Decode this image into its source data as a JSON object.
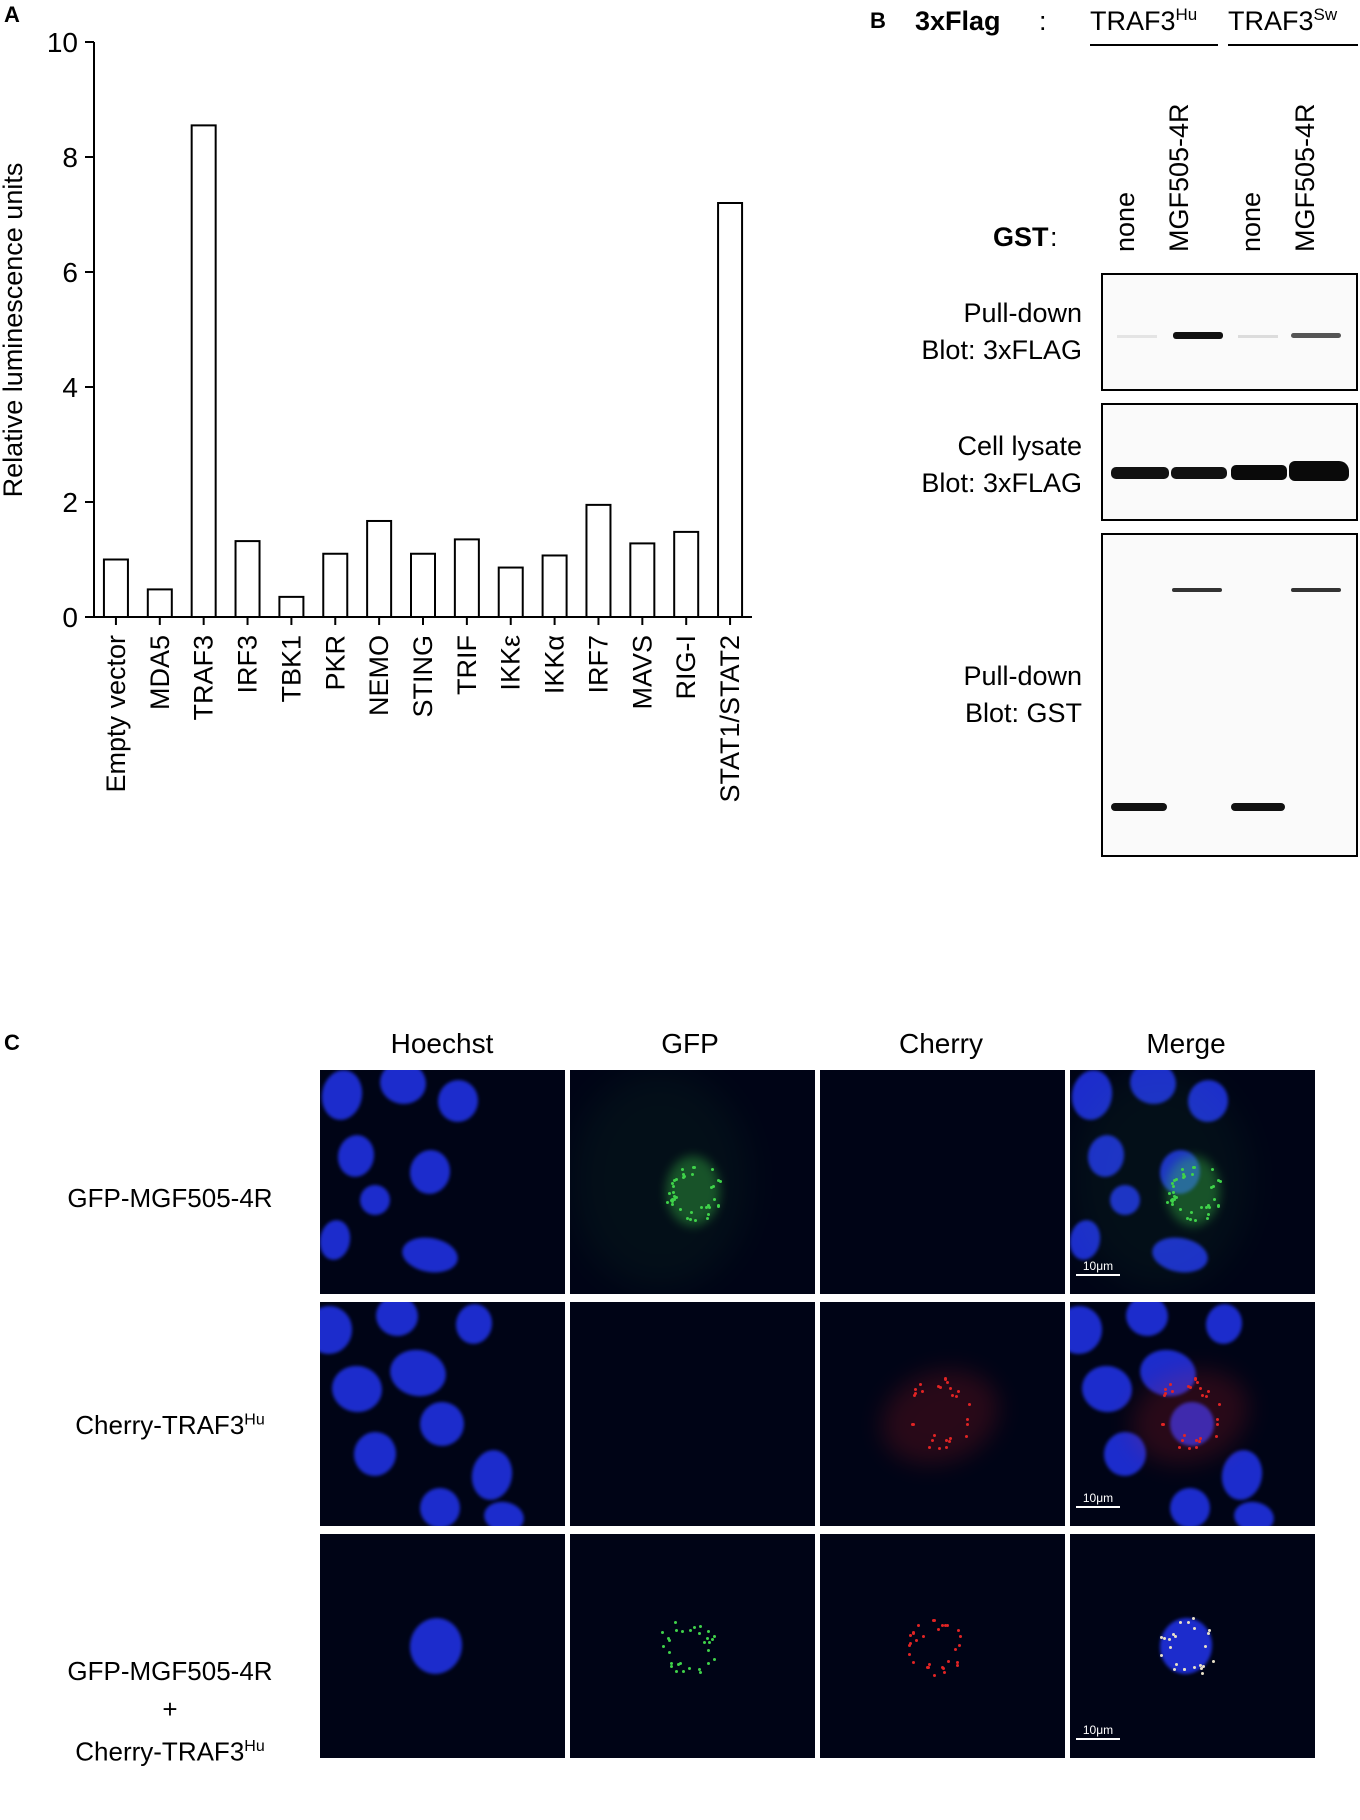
{
  "panel_a": {
    "letter": "A",
    "chart_data": {
      "type": "bar",
      "categories": [
        "Empty vector",
        "MDA5",
        "TRAF3",
        "IRF3",
        "TBK1",
        "PKR",
        "NEMO",
        "STING",
        "TRIF",
        "IKKε",
        "IKKα",
        "IRF7",
        "MAVS",
        "RIG-I",
        "STAT1/STAT2"
      ],
      "values": [
        1.0,
        0.48,
        8.55,
        1.32,
        0.35,
        1.1,
        1.67,
        1.1,
        1.35,
        0.86,
        1.07,
        1.95,
        1.28,
        1.48,
        7.2
      ],
      "ylabel": "Relative luminescence units",
      "xlabel": "",
      "ylim": [
        0,
        10
      ],
      "yticks": [
        0,
        2,
        4,
        6,
        8,
        10
      ],
      "bar_fill": "#ffffff",
      "bar_stroke": "#000000"
    }
  },
  "panel_b": {
    "letter": "B",
    "flag_label": "3xFlag",
    "flag_colon": ":",
    "group1": {
      "base": "TRAF3",
      "sup": "Hu"
    },
    "group2": {
      "base": "TRAF3",
      "sup": "Sw"
    },
    "gst_label": "GST",
    "gst_colon": ":",
    "lanes": [
      "none",
      "MGF505-4R",
      "none",
      "MGF505-4R"
    ],
    "blots": [
      {
        "line1": "Pull-down",
        "line2": "Blot: 3xFLAG"
      },
      {
        "line1": "Cell lysate",
        "line2": "Blot: 3xFLAG"
      },
      {
        "line1": "Pull-down",
        "line2": "Blot: GST"
      }
    ]
  },
  "panel_c": {
    "letter": "C",
    "columns": [
      "Hoechst",
      "GFP",
      "Cherry",
      "Merge"
    ],
    "rows": [
      {
        "line1": "GFP-MGF505-4R"
      },
      {
        "line1_base": "Cherry-TRAF3",
        "line1_sup": "Hu"
      },
      {
        "line1": "GFP-MGF505-4R",
        "plus": "+",
        "line3_base": "Cherry-TRAF3",
        "line3_sup": "Hu"
      }
    ],
    "scale_bar": "10μm",
    "colors": {
      "hoechst": "#1e2fd6",
      "gfp": "#3fd24a",
      "cherry": "#e02424",
      "background": "#000416"
    }
  }
}
